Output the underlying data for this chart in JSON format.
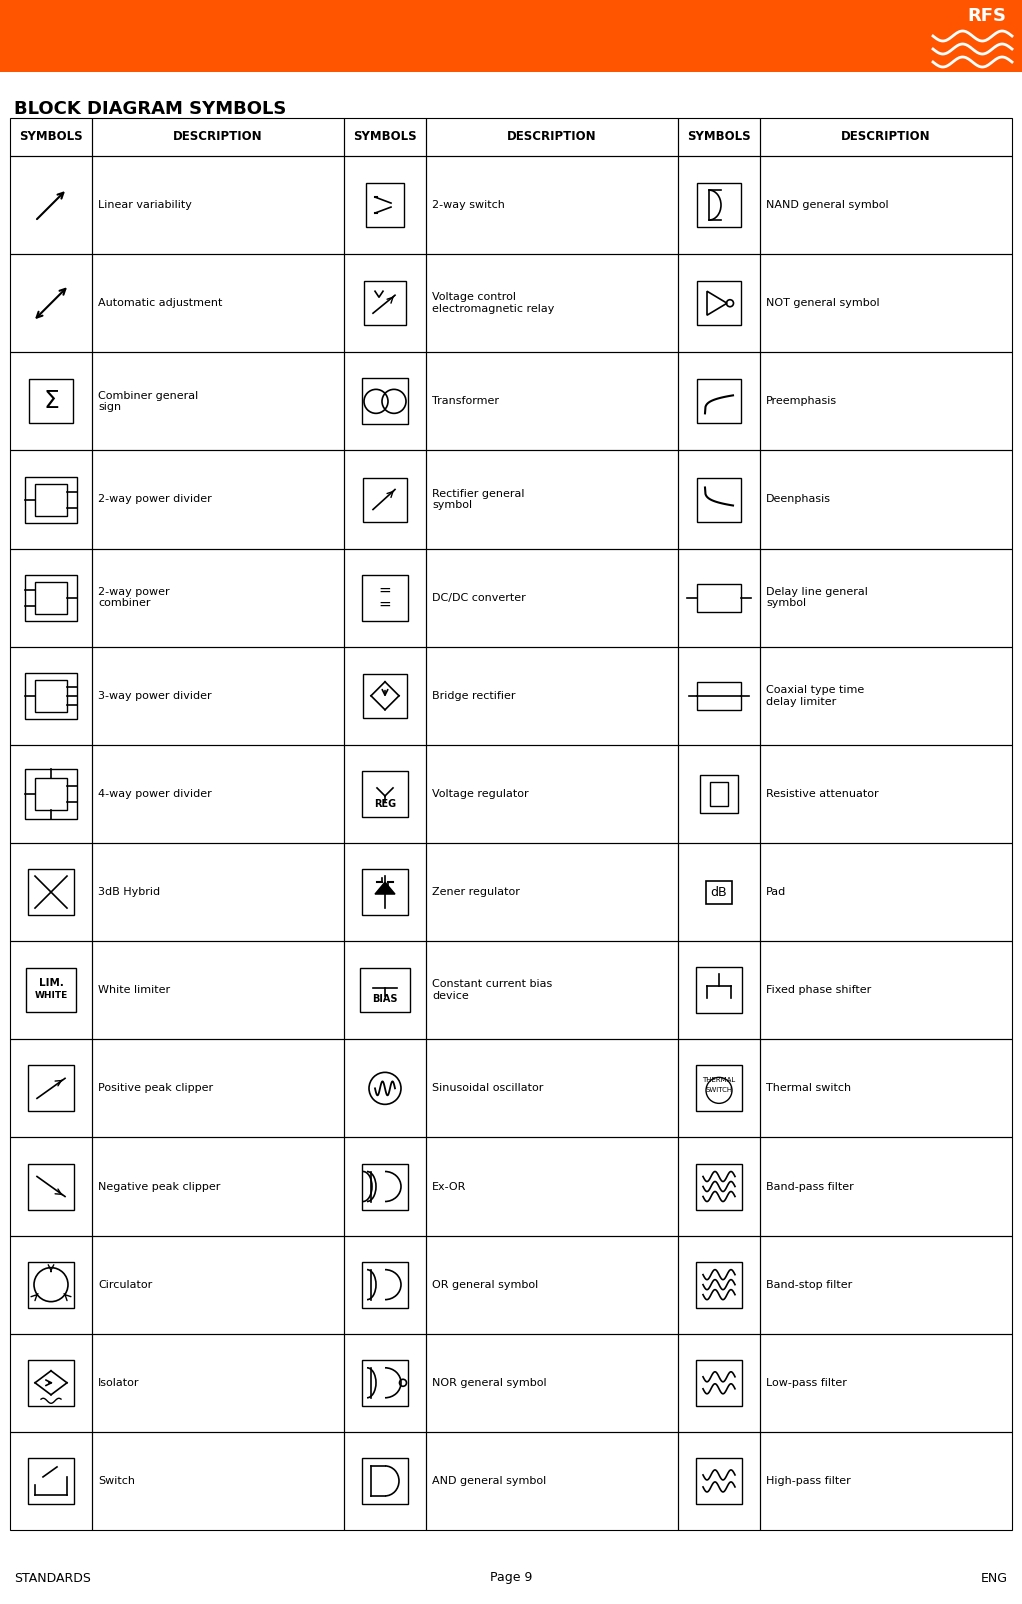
{
  "title": "BLOCK DIAGRAM SYMBOLS",
  "header_color": "#FF5500",
  "bg_color": "#FFFFFF",
  "text_color": "#000000",
  "footer_left": "STANDARDS",
  "footer_center": "Page 9",
  "footer_right": "ENG",
  "table_header": [
    "SYMBOLS",
    "DESCRIPTION",
    "SYMBOLS",
    "DESCRIPTION",
    "SYMBOLS",
    "DESCRIPTION"
  ],
  "rows": [
    [
      "Linear variability",
      "2-way switch",
      "NAND general symbol"
    ],
    [
      "Automatic adjustment",
      "Voltage control\nelectromagnetic relay",
      "NOT general symbol"
    ],
    [
      "Combiner general\nsign",
      "Transformer",
      "Preemphasis"
    ],
    [
      "2-way power divider",
      "Rectifier general\nsymbol",
      "Deenphasis"
    ],
    [
      "2-way power\ncombiner",
      "DC/DC converter",
      "Delay line general\nsymbol"
    ],
    [
      "3-way power divider",
      "Bridge rectifier",
      "Coaxial type time\ndelay limiter"
    ],
    [
      "4-way power divider",
      "Voltage regulator",
      "Resistive attenuator"
    ],
    [
      "3dB Hybrid",
      "Zener regulator",
      "Pad"
    ],
    [
      "White limiter",
      "Constant current bias\ndevice",
      "Fixed phase shifter"
    ],
    [
      "Positive peak clipper",
      "Sinusoidal oscillator",
      "Thermal switch"
    ],
    [
      "Negative peak clipper",
      "Ex-OR",
      "Band-pass filter"
    ],
    [
      "Circulator",
      "OR general symbol",
      "Band-stop filter"
    ],
    [
      "Isolator",
      "NOR general symbol",
      "Low-pass filter"
    ],
    [
      "Switch",
      "AND general symbol",
      "High-pass filter"
    ]
  ]
}
